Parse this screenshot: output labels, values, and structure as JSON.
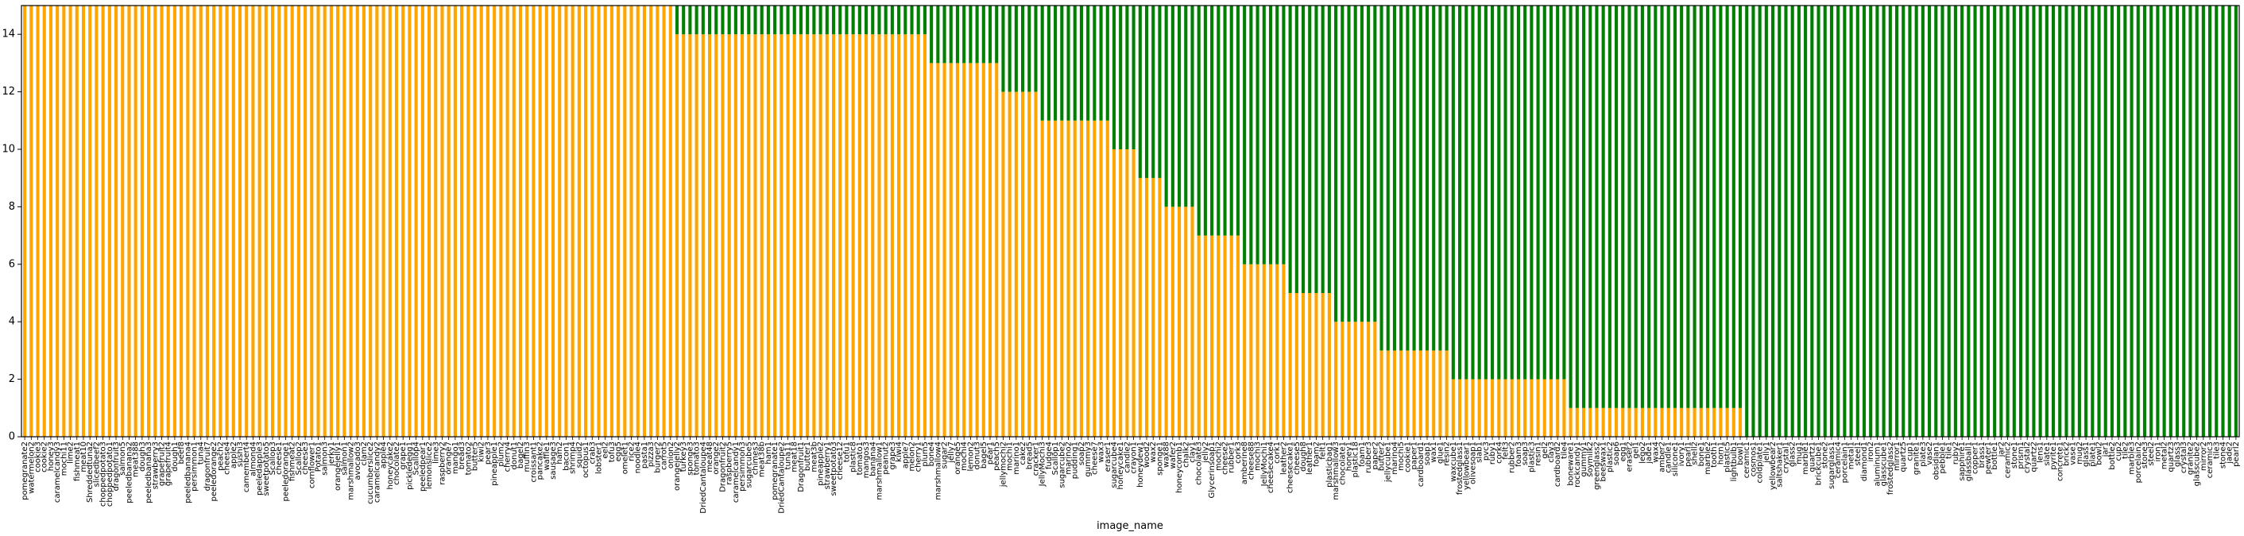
{
  "chart_data": {
    "type": "stacked_bar",
    "x_label": "image_name",
    "categories": [
      "pomegranate2",
      "watermelon2",
      "cookie3",
      "cookie2",
      "honey3",
      "caramelcandy3",
      "mochi11",
      "lime2",
      "fishmeat1",
      "meat10",
      "Shreddedtuna2",
      "slicedbeef2",
      "choppedpotato3",
      "choppedpotato1",
      "dragonfruit3",
      "salmon5",
      "peeledbanana2",
      "meat388",
      "dough3",
      "peeledbanana3",
      "strawberry3",
      "grapefruit2",
      "grapefruit4",
      "dough1",
      "beef8",
      "peeledbanana4",
      "persimmon1",
      "tuna4",
      "dragonfruit7",
      "peeledorange2",
      "peach2",
      "cheese4",
      "apple2",
      "sushi3",
      "camembert4",
      "almond4",
      "peeledapple3",
      "sweetpotato5",
      "Scallop3",
      "cheese1",
      "peeledorange1",
      "fishmeat2",
      "Scallop2",
      "cheese3",
      "cornflower1",
      "Potato1",
      "salmon3",
      "jerky1",
      "orangejelly1",
      "salmon1",
      "marshmallow2",
      "avocado3",
      "clam2",
      "cucumberslice2",
      "caramelcandy2",
      "apple4",
      "honeycake2",
      "chocolate2",
      "grape1",
      "pickledegg1",
      "Scallop4",
      "peeledpear1",
      "lemonslice2",
      "lime3",
      "raspberry2",
      "orange7",
      "mango1",
      "bread3",
      "tomato2",
      "butter5",
      "kiwi2",
      "pear3",
      "pineapple1",
      "plum2",
      "cherry4",
      "donut1",
      "bagel2",
      "muffin3",
      "croissant1",
      "pancake2",
      "waffle1",
      "sausage3",
      "ham2",
      "bacon1",
      "shrimp4",
      "squid2",
      "octopus1",
      "crab3",
      "lobster1",
      "eel2",
      "tofu3",
      "egg5",
      "omelet1",
      "rice2",
      "noodle4",
      "pasta1",
      "pizza3",
      "burger2",
      "carrot5",
      "onion2",
      "orangejelly2",
      "turkey3",
      "sponge3",
      "tomato3",
      "DriedCantaloupe4",
      "meat48",
      "orange2",
      "Dragonfruit2",
      "raspberry5",
      "caramelcandy1",
      "persimmon3",
      "sugarcube5",
      "chimes3",
      "meat38b",
      "ham1",
      "pomegranate1",
      "DriedCantaloupe2",
      "tuna11",
      "meat18",
      "Dragonfruit1",
      "butter1",
      "meat3b",
      "pineapple2",
      "strawberry1",
      "sweetpotato3",
      "cheese12",
      "tofu1",
      "plastic8",
      "tomato1",
      "mangos3",
      "banana4",
      "marshmallow1",
      "peanut2",
      "grape3",
      "kiwi4",
      "apple7",
      "melon2",
      "cherry1",
      "plum5",
      "bone4",
      "marshmallow4",
      "sugar2",
      "jelly7",
      "orange5",
      "mochi4",
      "lemon2",
      "donut3",
      "bagel5",
      "pear1",
      "peach5",
      "jellymochi2",
      "mochi1",
      "marino1",
      "cake2",
      "bread5",
      "cracker1",
      "JellyMochi3",
      "fudge4",
      "Scallop1",
      "sugarcube2",
      "marino2",
      "pudding1",
      "soap2",
      "gummy3",
      "cheese7",
      "wax3",
      "eraser1",
      "sugarcube4",
      "honeycake1",
      "candle2",
      "crayon1",
      "honeydew1",
      "wood2",
      "wax2",
      "sponge1",
      "wax88",
      "wafer2",
      "honeycomb1",
      "chalk2",
      "clay1",
      "chocolate3",
      "jelly2",
      "Glycerinsoap1",
      "mochi2",
      "cheese2",
      "rubber1",
      "cork3",
      "amberine8",
      "cheese88",
      "mochi3",
      "JellyMochi1",
      "cheesecake4",
      "cork1",
      "leather2",
      "cheesecake1",
      "cheese5",
      "dough8",
      "leather1",
      "foam2",
      "felt1",
      "plasticbag1",
      "marshmallow3",
      "chocolate1",
      "honey1",
      "plastic18",
      "foam1",
      "rubber3",
      "paper2",
      "butter2",
      "jellycube1",
      "marino4",
      "mochi5",
      "cookie1",
      "paper1",
      "cardboard1",
      "soap1",
      "wax1",
      "glue1",
      "resin2",
      "waxcube1",
      "frostedglass1",
      "yellowbear1",
      "olivesoap1",
      "slab1",
      "pvc3",
      "ruby1",
      "cork4",
      "felt3",
      "rubber2",
      "foam3",
      "soap3",
      "plastic3",
      "resin1",
      "gel2",
      "clay3",
      "cardboard2",
      "tile4",
      "boneware1",
      "rockcandy1",
      "gummy1",
      "soymilk2",
      "greenglass2",
      "beeswax1",
      "plastic2",
      "soap6",
      "egg1",
      "eraser2",
      "gel1",
      "lego2",
      "jade1",
      "wax4",
      "amber2",
      "candle1",
      "silicone1",
      "ivory1",
      "pearl1",
      "shell2",
      "bone1",
      "marble2",
      "tooth1",
      "horn1",
      "plastic5",
      "lightbulb1",
      "bowl1",
      "ceramic1",
      "cosmos1",
      "coldplate1",
      "jelly1",
      "yellowbear2",
      "saltshaker1",
      "crystal1",
      "glass2",
      "mug1",
      "marble1",
      "quartz1",
      "brickcube1",
      "stone2",
      "sugarglass1",
      "ceramic4",
      "porcelain1",
      "metal1",
      "steel1",
      "diamond1",
      "iron2",
      "aluminum1",
      "glasscube1",
      "frostedglass2",
      "mirror1",
      "quartz5",
      "cup1",
      "granite1",
      "plate3",
      "vase2",
      "obsidian1",
      "pebble1",
      "tile1",
      "ruby2",
      "sapphire1",
      "glassball1",
      "copper1",
      "brass1",
      "pewter1",
      "bottle1",
      "jar2",
      "ceramic2",
      "stone1",
      "prism1",
      "crystal2",
      "quartz2",
      "lens1",
      "slate1",
      "pyrite1",
      "concrete1",
      "brick2",
      "vase1",
      "mug2",
      "glass1",
      "plate1",
      "bowl2",
      "jar1",
      "bottle2",
      "cup2",
      "tile2",
      "marble3",
      "porcelain2",
      "stone3",
      "steel2",
      "iron1",
      "metal2",
      "quartz3",
      "glass3",
      "crystal3",
      "granite2",
      "glasscube2",
      "mirror2",
      "ceramic3",
      "tile3",
      "stone4",
      "jade2",
      "pearl2"
    ],
    "series": [
      {
        "color": "#ffa500",
        "values": [
          15,
          15,
          15,
          15,
          15,
          15,
          15,
          15,
          15,
          15,
          15,
          15,
          15,
          15,
          15,
          15,
          15,
          15,
          15,
          15,
          15,
          15,
          15,
          15,
          15,
          15,
          15,
          15,
          15,
          15,
          15,
          15,
          15,
          15,
          15,
          15,
          15,
          15,
          15,
          15,
          15,
          15,
          15,
          15,
          15,
          15,
          15,
          15,
          15,
          15,
          15,
          15,
          15,
          15,
          15,
          15,
          15,
          15,
          15,
          15,
          15,
          15,
          15,
          15,
          15,
          15,
          15,
          15,
          15,
          15,
          15,
          15,
          15,
          15,
          15,
          15,
          15,
          15,
          15,
          15,
          15,
          15,
          15,
          15,
          15,
          15,
          15,
          15,
          15,
          15,
          15,
          15,
          15,
          15,
          15,
          15,
          15,
          15,
          15,
          15,
          14,
          14,
          14,
          14,
          14,
          14,
          14,
          14,
          14,
          14,
          14,
          14,
          14,
          14,
          14,
          14,
          14,
          14,
          14,
          14,
          14,
          14,
          14,
          14,
          14,
          14,
          14,
          14,
          14,
          14,
          14,
          14,
          14,
          14,
          14,
          14,
          14,
          14,
          14,
          13,
          13,
          13,
          13,
          13,
          13,
          13,
          13,
          13,
          13,
          13,
          12,
          12,
          12,
          12,
          12,
          12,
          11,
          11,
          11,
          11,
          11,
          11,
          11,
          11,
          11,
          11,
          11,
          10,
          10,
          10,
          10,
          9,
          9,
          9,
          9,
          8,
          8,
          8,
          8,
          8,
          7,
          7,
          7,
          7,
          7,
          7,
          7,
          6,
          6,
          6,
          6,
          6,
          6,
          6,
          5,
          5,
          5,
          5,
          5,
          5,
          5,
          4,
          4,
          4,
          4,
          4,
          4,
          4,
          3,
          3,
          3,
          3,
          3,
          3,
          3,
          3,
          3,
          3,
          3,
          2,
          2,
          2,
          2,
          2,
          2,
          2,
          2,
          2,
          2,
          2,
          2,
          2,
          2,
          2,
          2,
          2,
          2,
          1,
          1,
          1,
          1,
          1,
          1,
          1,
          1,
          1,
          1,
          1,
          1,
          1,
          1,
          1,
          1,
          1,
          1,
          1,
          1,
          1,
          1,
          1,
          1,
          1,
          1,
          1,
          0,
          0,
          0,
          0,
          0,
          0,
          0,
          0,
          0,
          0,
          0,
          0,
          0,
          0,
          0,
          0,
          0,
          0,
          0,
          0,
          0,
          0,
          0,
          0,
          0,
          0,
          0,
          0,
          0,
          0,
          0,
          0,
          0,
          0,
          0,
          0,
          0,
          0,
          0,
          0,
          0,
          0,
          0,
          0,
          0,
          0,
          0,
          0,
          0,
          0,
          0,
          0,
          0,
          0,
          0,
          0,
          0,
          0,
          0,
          0,
          0,
          0,
          0,
          0,
          0,
          0,
          0,
          0,
          0,
          0,
          0,
          0,
          0,
          0,
          0,
          0
        ]
      },
      {
        "color": "#008000",
        "values": [
          0,
          0,
          0,
          0,
          0,
          0,
          0,
          0,
          0,
          0,
          0,
          0,
          0,
          0,
          0,
          0,
          0,
          0,
          0,
          0,
          0,
          0,
          0,
          0,
          0,
          0,
          0,
          0,
          0,
          0,
          0,
          0,
          0,
          0,
          0,
          0,
          0,
          0,
          0,
          0,
          0,
          0,
          0,
          0,
          0,
          0,
          0,
          0,
          0,
          0,
          0,
          0,
          0,
          0,
          0,
          0,
          0,
          0,
          0,
          0,
          0,
          0,
          0,
          0,
          0,
          0,
          0,
          0,
          0,
          0,
          0,
          0,
          0,
          0,
          0,
          0,
          0,
          0,
          0,
          0,
          0,
          0,
          0,
          0,
          0,
          0,
          0,
          0,
          0,
          0,
          0,
          0,
          0,
          0,
          0,
          0,
          0,
          0,
          0,
          0,
          1,
          1,
          1,
          1,
          1,
          1,
          1,
          1,
          1,
          1,
          1,
          1,
          1,
          1,
          1,
          1,
          1,
          1,
          1,
          1,
          1,
          1,
          1,
          1,
          1,
          1,
          1,
          1,
          1,
          1,
          1,
          1,
          1,
          1,
          1,
          1,
          1,
          1,
          1,
          2,
          2,
          2,
          2,
          2,
          2,
          2,
          2,
          2,
          2,
          2,
          3,
          3,
          3,
          3,
          3,
          3,
          4,
          4,
          4,
          4,
          4,
          4,
          4,
          4,
          4,
          4,
          4,
          5,
          5,
          5,
          5,
          6,
          6,
          6,
          6,
          7,
          7,
          7,
          7,
          7,
          8,
          8,
          8,
          8,
          8,
          8,
          8,
          9,
          9,
          9,
          9,
          9,
          9,
          9,
          10,
          10,
          10,
          10,
          10,
          10,
          10,
          11,
          11,
          11,
          11,
          11,
          11,
          11,
          12,
          12,
          12,
          12,
          12,
          12,
          12,
          12,
          12,
          12,
          12,
          13,
          13,
          13,
          13,
          13,
          13,
          13,
          13,
          13,
          13,
          13,
          13,
          13,
          13,
          13,
          13,
          13,
          13,
          14,
          14,
          14,
          14,
          14,
          14,
          14,
          14,
          14,
          14,
          14,
          14,
          14,
          14,
          14,
          14,
          14,
          14,
          14,
          14,
          14,
          14,
          14,
          14,
          14,
          14,
          14,
          15,
          15,
          15,
          15,
          15,
          15,
          15,
          15,
          15,
          15,
          15,
          15,
          15,
          15,
          15,
          15,
          15,
          15,
          15,
          15,
          15,
          15,
          15,
          15,
          15,
          15,
          15,
          15,
          15,
          15,
          15,
          15,
          15,
          15,
          15,
          15,
          15,
          15,
          15,
          15,
          15,
          15,
          15,
          15,
          15,
          15,
          15,
          15,
          15,
          15,
          15,
          15,
          15,
          15,
          15,
          15,
          15,
          15,
          15,
          15,
          15,
          15,
          15,
          15,
          15,
          15,
          15,
          15,
          15,
          15,
          15,
          15,
          15,
          15,
          15,
          15
        ]
      }
    ],
    "ylim": [
      0,
      15
    ],
    "yticks": [
      0,
      2,
      4,
      6,
      8,
      10,
      12,
      14
    ]
  }
}
